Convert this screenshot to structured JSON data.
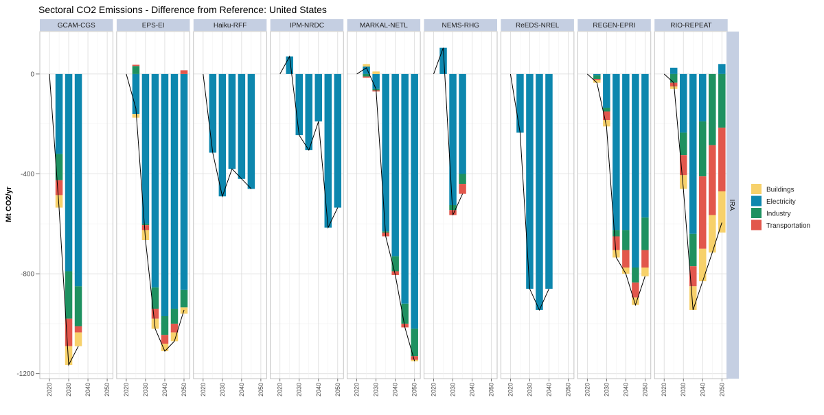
{
  "chart_data": {
    "type": "bar",
    "title": "Sectoral CO2 Emissions - Difference from Reference: United States",
    "ylabel": "Mt CO2/yr",
    "xlabel": "",
    "ylim": [
      -1220,
      170
    ],
    "xlim": [
      2015,
      2053
    ],
    "y_ticks": [
      "0",
      "-400",
      "-800",
      "-1200"
    ],
    "y_tick_values": [
      0,
      -400,
      -800,
      -1200
    ],
    "x_ticks": [
      "2020",
      "2030",
      "2040",
      "2050"
    ],
    "x_tick_values": [
      2020,
      2030,
      2040,
      2050
    ],
    "strip_label": "IRA",
    "legend_position": "right",
    "grid": true,
    "colors": {
      "Buildings": "#F7D16B",
      "Electricity": "#0D87AE",
      "Industry": "#1E9160",
      "Transportation": "#E2574C"
    },
    "legend": [
      "Buildings",
      "Electricity",
      "Industry",
      "Transportation"
    ],
    "panels": [
      {
        "name": "GCAM-CGS",
        "bars": [
          {
            "year": 2025,
            "Buildings": -50,
            "Electricity": -320,
            "Industry": -105,
            "Transportation": -60
          },
          {
            "year": 2030,
            "Buildings": -75,
            "Electricity": -790,
            "Industry": -190,
            "Transportation": -110
          },
          {
            "year": 2035,
            "Buildings": -55,
            "Electricity": -850,
            "Industry": -160,
            "Transportation": -25
          }
        ]
      },
      {
        "name": "EPS-EI",
        "bars": [
          {
            "year": 2025,
            "Buildings": -15,
            "Electricity": -160,
            "Industry": 32,
            "Transportation": 5
          },
          {
            "year": 2030,
            "Buildings": -40,
            "Electricity": -600,
            "Industry": -5,
            "Transportation": -20
          },
          {
            "year": 2035,
            "Buildings": -40,
            "Electricity": -855,
            "Industry": -85,
            "Transportation": -40
          },
          {
            "year": 2040,
            "Buildings": -30,
            "Electricity": -970,
            "Industry": -75,
            "Transportation": -35
          },
          {
            "year": 2045,
            "Buildings": -35,
            "Electricity": -940,
            "Industry": -60,
            "Transportation": -35
          },
          {
            "year": 2050,
            "Buildings": -25,
            "Electricity": -865,
            "Industry": -70,
            "Transportation": 15
          }
        ]
      },
      {
        "name": "Haiku-RFF",
        "bars": [
          {
            "year": 2025,
            "Electricity": -315
          },
          {
            "year": 2030,
            "Electricity": -490
          },
          {
            "year": 2035,
            "Electricity": -380
          },
          {
            "year": 2040,
            "Electricity": -420
          },
          {
            "year": 2045,
            "Electricity": -460
          }
        ]
      },
      {
        "name": "IPM-NRDC",
        "bars": [
          {
            "year": 2025,
            "Electricity": 70
          },
          {
            "year": 2030,
            "Electricity": -245
          },
          {
            "year": 2035,
            "Electricity": -305
          },
          {
            "year": 2040,
            "Electricity": -190
          },
          {
            "year": 2045,
            "Electricity": -615
          },
          {
            "year": 2050,
            "Electricity": -535
          }
        ]
      },
      {
        "name": "MARKAL-NETL",
        "bars": [
          {
            "year": 2025,
            "Buildings": 10,
            "Electricity": 30,
            "Industry": -10,
            "Transportation": -5
          },
          {
            "year": 2030,
            "Buildings": 10,
            "Electricity": -60,
            "Industry": -5,
            "Transportation": -5
          },
          {
            "year": 2035,
            "Buildings": 0,
            "Electricity": -630,
            "Industry": -5,
            "Transportation": -15
          },
          {
            "year": 2040,
            "Buildings": 0,
            "Electricity": -730,
            "Industry": -60,
            "Transportation": -15
          },
          {
            "year": 2045,
            "Buildings": 0,
            "Electricity": -920,
            "Industry": -80,
            "Transportation": -15
          },
          {
            "year": 2050,
            "Buildings": -5,
            "Electricity": -1020,
            "Industry": -110,
            "Transportation": -15
          }
        ]
      },
      {
        "name": "NEMS-RHG",
        "bars": [
          {
            "year": 2025,
            "Electricity": 105
          },
          {
            "year": 2030,
            "Electricity": -525,
            "Industry": -20,
            "Transportation": -20
          },
          {
            "year": 2035,
            "Electricity": -400,
            "Industry": -40,
            "Transportation": -40
          }
        ]
      },
      {
        "name": "ReEDS-NREL",
        "bars": [
          {
            "year": 2025,
            "Electricity": -235
          },
          {
            "year": 2030,
            "Electricity": -860
          },
          {
            "year": 2035,
            "Electricity": -945
          },
          {
            "year": 2040,
            "Electricity": -860
          }
        ]
      },
      {
        "name": "REGEN-EPRI",
        "bars": [
          {
            "year": 2025,
            "Buildings": -10,
            "Electricity": -5,
            "Industry": -15,
            "Transportation": -5
          },
          {
            "year": 2030,
            "Buildings": -25,
            "Electricity": -135,
            "Industry": -15,
            "Transportation": -35
          },
          {
            "year": 2035,
            "Buildings": -30,
            "Electricity": -625,
            "Industry": -25,
            "Transportation": -55
          },
          {
            "year": 2040,
            "Buildings": -25,
            "Electricity": -625,
            "Industry": -80,
            "Transportation": -70
          },
          {
            "year": 2045,
            "Buildings": -30,
            "Electricity": -775,
            "Industry": -60,
            "Transportation": -60
          },
          {
            "year": 2050,
            "Buildings": -35,
            "Electricity": -575,
            "Industry": -130,
            "Transportation": -70
          }
        ]
      },
      {
        "name": "RIO-REPEAT",
        "bars": [
          {
            "year": 2025,
            "Buildings": -10,
            "Electricity": 25,
            "Industry": -35,
            "Transportation": -15
          },
          {
            "year": 2030,
            "Buildings": -55,
            "Electricity": -235,
            "Industry": -90,
            "Transportation": -80
          },
          {
            "year": 2035,
            "Buildings": -95,
            "Electricity": -640,
            "Industry": -130,
            "Transportation": -80
          },
          {
            "year": 2040,
            "Buildings": -130,
            "Electricity": -190,
            "Industry": -220,
            "Transportation": -290
          },
          {
            "year": 2045,
            "Buildings": -150,
            "Electricity": 0,
            "Industry": -285,
            "Transportation": -280
          },
          {
            "year": 2050,
            "Buildings": -165,
            "Electricity": 40,
            "Industry": -215,
            "Transportation": -255
          }
        ]
      }
    ]
  }
}
